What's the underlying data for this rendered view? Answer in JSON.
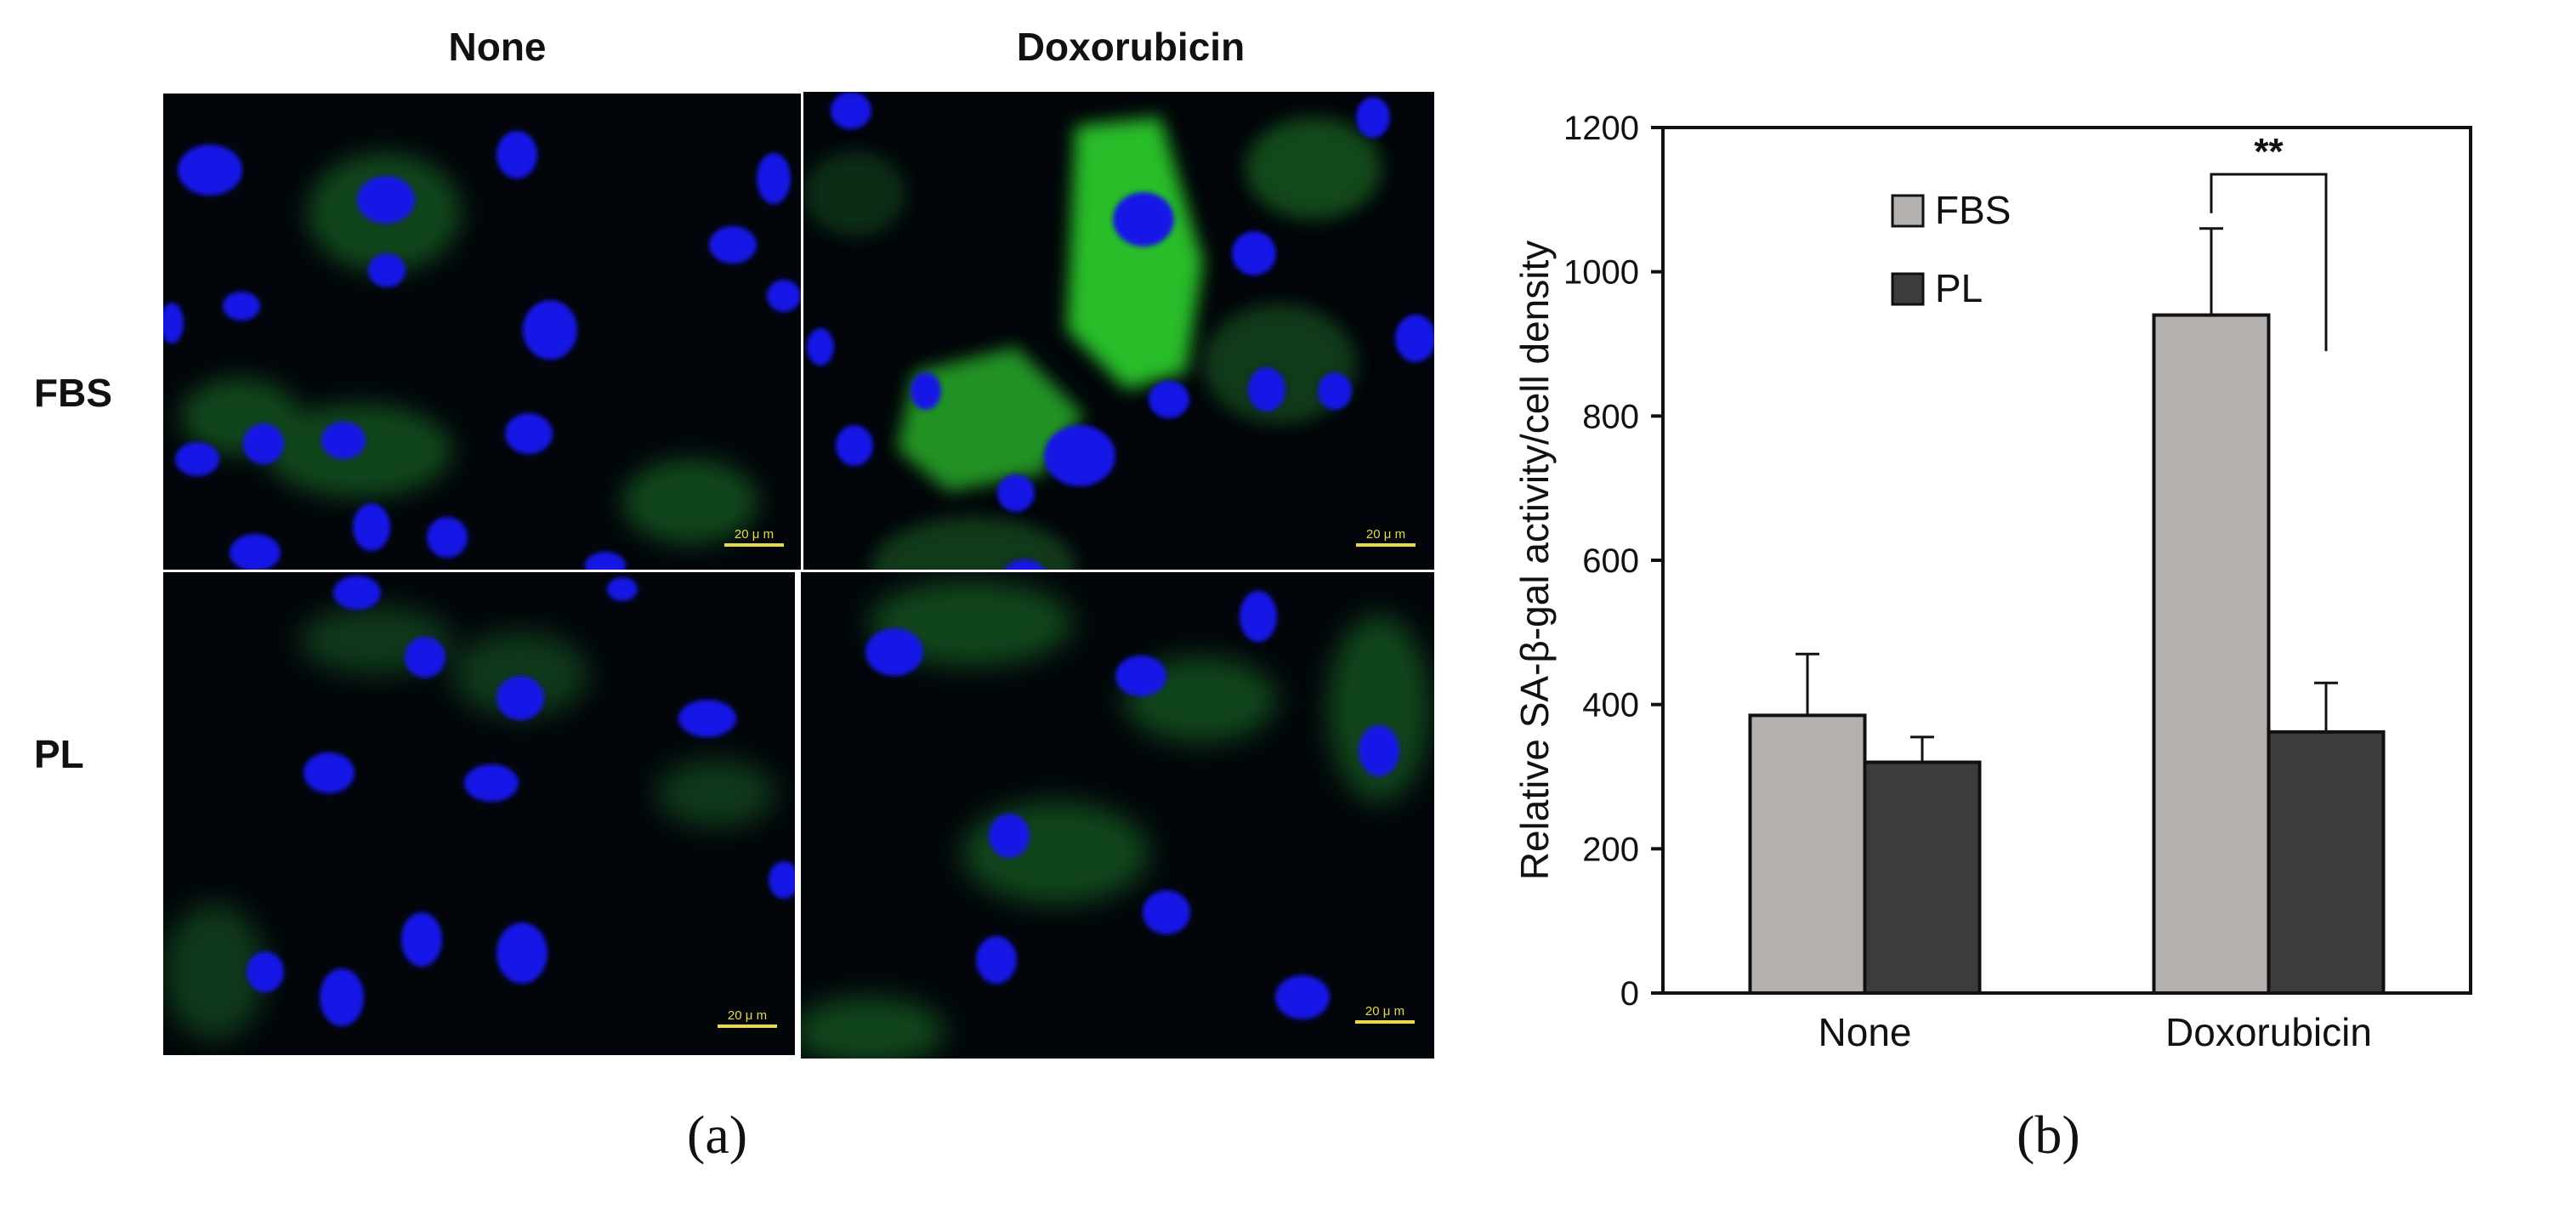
{
  "micrographs": {
    "columns": [
      "None",
      "Doxorubicin"
    ],
    "rows": [
      "FBS",
      "PL"
    ],
    "scale_bar_label": "20 μ m",
    "panels": [
      {
        "row": "FBS",
        "column": "None"
      },
      {
        "row": "FBS",
        "column": "Doxorubicin"
      },
      {
        "row": "PL",
        "column": "None"
      },
      {
        "row": "PL",
        "column": "Doxorubicin"
      }
    ],
    "colors": {
      "nucleus": "#1414e6",
      "cytoplasm_stain": "#2fd22f",
      "background": "#02060a"
    }
  },
  "captions": {
    "a": "(a)",
    "b": "(b)"
  },
  "chart_data": {
    "type": "bar",
    "categories": [
      "None",
      "Doxorubicin"
    ],
    "series": [
      {
        "name": "FBS",
        "values": [
          385,
          940
        ],
        "errors": [
          85,
          120
        ],
        "color": "#b3b0ad"
      },
      {
        "name": "PL",
        "values": [
          320,
          362
        ],
        "errors": [
          35,
          68
        ],
        "color": "#3c3c3b"
      }
    ],
    "ylabel": "Relative SA-β-gal activity/cell density",
    "xlabel": "",
    "ylim": [
      0,
      1200
    ],
    "yticks": [
      0,
      200,
      400,
      600,
      800,
      1000,
      1200
    ],
    "legend_position": "top-left",
    "grid": false,
    "significance": [
      {
        "category": "Doxorubicin",
        "label": "**"
      }
    ]
  }
}
